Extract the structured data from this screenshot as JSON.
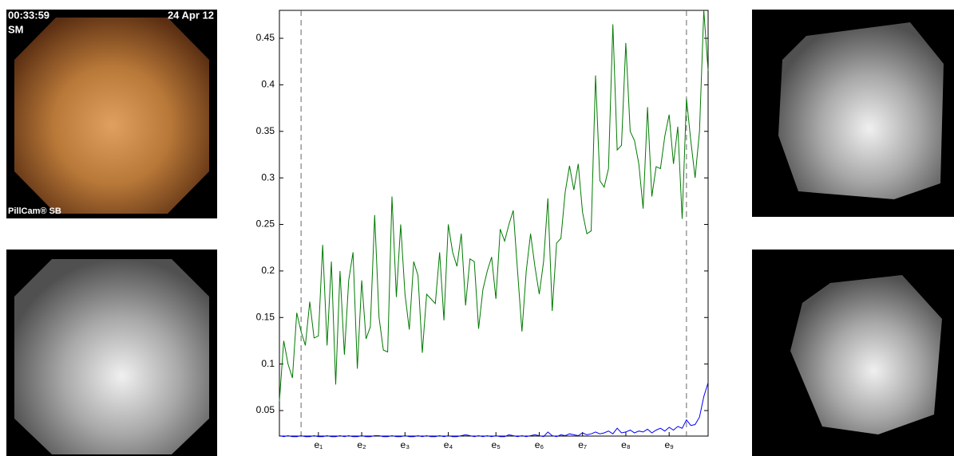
{
  "capsule_frame": {
    "time": "00:33:59",
    "date": "24 Apr 12",
    "mode": "SM",
    "brand": "PillCam® SB"
  },
  "chart_data": {
    "type": "line",
    "x": [
      0,
      1,
      2,
      3,
      4,
      5,
      6,
      7,
      8,
      9,
      10,
      11,
      12,
      13,
      14,
      15,
      16,
      17,
      18,
      19,
      20,
      21,
      22,
      23,
      24,
      25,
      26,
      27,
      28,
      29,
      30,
      31,
      32,
      33,
      34,
      35,
      36,
      37,
      38,
      39,
      40,
      41,
      42,
      43,
      44,
      45,
      46,
      47,
      48,
      49,
      50,
      51,
      52,
      53,
      54,
      55,
      56,
      57,
      58,
      59,
      60,
      61,
      62,
      63,
      64,
      65,
      66,
      67,
      68,
      69,
      70,
      71,
      72,
      73,
      74,
      75,
      76,
      77,
      78,
      79,
      80,
      81,
      82,
      83,
      84,
      85,
      86,
      87,
      88,
      89,
      90,
      91,
      92,
      93,
      94,
      95,
      96,
      97,
      98,
      99
    ],
    "series": [
      {
        "color": "#007a00",
        "values": [
          0.06,
          0.125,
          0.1,
          0.085,
          0.155,
          0.135,
          0.12,
          0.167,
          0.128,
          0.13,
          0.228,
          0.12,
          0.21,
          0.078,
          0.2,
          0.11,
          0.19,
          0.22,
          0.095,
          0.19,
          0.127,
          0.14,
          0.26,
          0.15,
          0.115,
          0.113,
          0.28,
          0.172,
          0.25,
          0.175,
          0.137,
          0.21,
          0.195,
          0.112,
          0.175,
          0.17,
          0.165,
          0.22,
          0.147,
          0.25,
          0.22,
          0.205,
          0.24,
          0.163,
          0.213,
          0.21,
          0.138,
          0.18,
          0.2,
          0.215,
          0.17,
          0.245,
          0.232,
          0.25,
          0.265,
          0.2,
          0.135,
          0.2,
          0.24,
          0.205,
          0.175,
          0.21,
          0.278,
          0.157,
          0.23,
          0.235,
          0.285,
          0.313,
          0.287,
          0.315,
          0.263,
          0.24,
          0.243,
          0.41,
          0.297,
          0.29,
          0.31,
          0.465,
          0.33,
          0.335,
          0.445,
          0.35,
          0.34,
          0.315,
          0.267,
          0.376,
          0.28,
          0.312,
          0.31,
          0.345,
          0.368,
          0.315,
          0.355,
          0.256,
          0.385,
          0.34,
          0.3,
          0.35,
          0.48,
          0.415
        ]
      },
      {
        "color": "#0000ff",
        "values": [
          0.023,
          0.022,
          0.023,
          0.022,
          0.022,
          0.023,
          0.022,
          0.022,
          0.023,
          0.022,
          0.022,
          0.023,
          0.022,
          0.022,
          0.023,
          0.022,
          0.023,
          0.022,
          0.022,
          0.023,
          0.022,
          0.022,
          0.023,
          0.023,
          0.022,
          0.022,
          0.023,
          0.022,
          0.022,
          0.023,
          0.022,
          0.022,
          0.023,
          0.022,
          0.023,
          0.022,
          0.022,
          0.023,
          0.022,
          0.023,
          0.022,
          0.022,
          0.023,
          0.024,
          0.023,
          0.022,
          0.023,
          0.022,
          0.023,
          0.022,
          0.023,
          0.022,
          0.022,
          0.024,
          0.023,
          0.022,
          0.023,
          0.022,
          0.023,
          0.024,
          0.023,
          0.022,
          0.027,
          0.023,
          0.022,
          0.024,
          0.023,
          0.025,
          0.024,
          0.023,
          0.026,
          0.024,
          0.025,
          0.027,
          0.025,
          0.026,
          0.028,
          0.025,
          0.031,
          0.026,
          0.027,
          0.029,
          0.026,
          0.028,
          0.027,
          0.03,
          0.026,
          0.029,
          0.031,
          0.028,
          0.032,
          0.029,
          0.033,
          0.031,
          0.04,
          0.034,
          0.035,
          0.043,
          0.065,
          0.08
        ]
      }
    ],
    "xlim": [
      0,
      99
    ],
    "xticks": [
      {
        "value": 9,
        "label": "e₁"
      },
      {
        "value": 19,
        "label": "e₂"
      },
      {
        "value": 29,
        "label": "e₃"
      },
      {
        "value": 39,
        "label": "e₄"
      },
      {
        "value": 50,
        "label": "e₅"
      },
      {
        "value": 60,
        "label": "e₆"
      },
      {
        "value": 70,
        "label": "e₇"
      },
      {
        "value": 80,
        "label": "e₈"
      },
      {
        "value": 90,
        "label": "e₉"
      }
    ],
    "ylim": [
      0.0226,
      0.48
    ],
    "yticks": [
      0.05,
      0.1,
      0.15,
      0.2,
      0.25,
      0.3,
      0.35,
      0.4,
      0.45
    ],
    "vlines": [
      5,
      94
    ]
  }
}
